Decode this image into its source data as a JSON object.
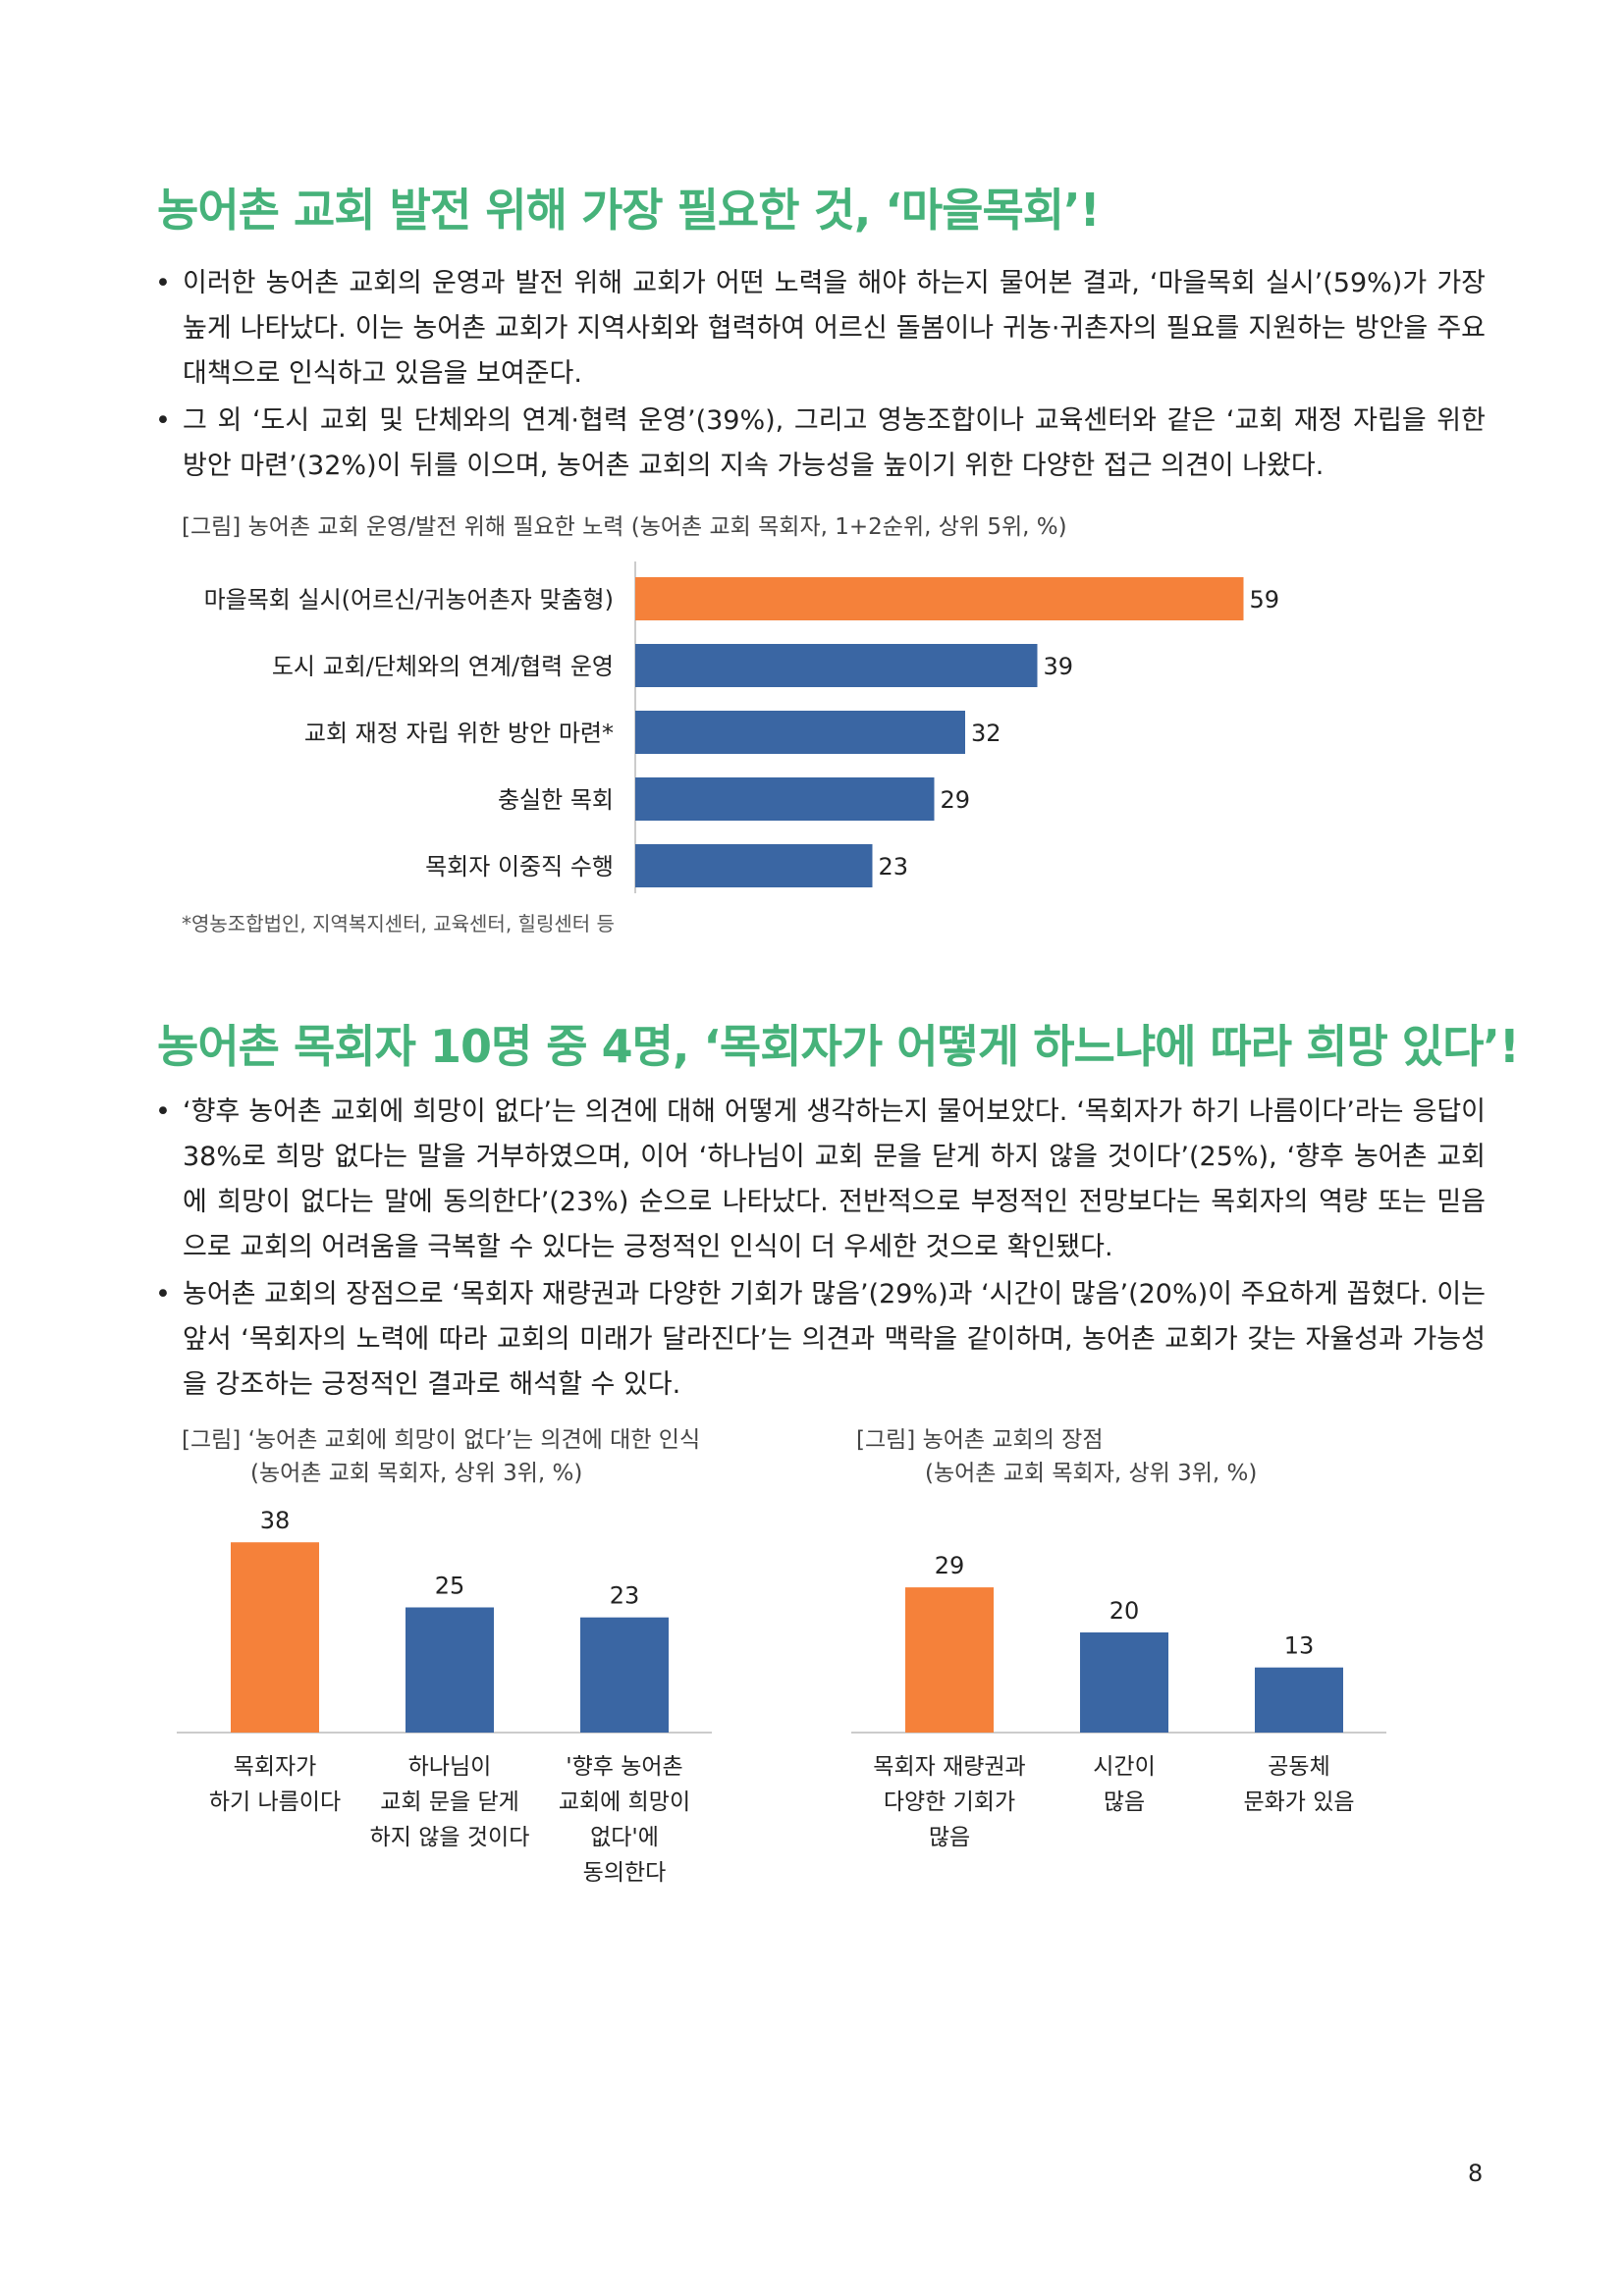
{
  "section1": {
    "heading": "농어촌 교회 발전 위해 가장 필요한 것, ‘마을목회’!",
    "bullets": [
      "이러한 농어촌 교회의 운영과 발전 위해 교회가 어떤 노력을 해야 하는지 물어본 결과, ‘마을목회 실시’(59%)가 가장 높게 나타났다. 이는 농어촌 교회가 지역사회와 협력하여 어르신 돌봄이나 귀농·귀촌자의 필요를 지원하는 방안을 주요 대책으로 인식하고 있음을 보여준다.",
      "그 외 ‘도시 교회 및 단체와의 연계·협력 운영’(39%), 그리고 영농조합이나 교육센터와 같은 ‘교회 재정 자립을 위한 방안 마련’(32%)이 뒤를 이으며, 농어촌 교회의 지속 가능성을 높이기 위한 다양한 접근 의견이 나왔다."
    ],
    "chart_caption": "[그림] 농어촌 교회 운영/발전 위해 필요한 노력 (농어촌 교회 목회자, 1+2순위, 상위 5위, %)",
    "footnote": "*영농조합법인, 지역복지센터, 교육센터, 힐링센터 등"
  },
  "section2": {
    "heading": "농어촌 목회자 10명 중 4명, ‘목회자가 어떻게 하느냐에 따라 희망 있다’!",
    "bullets": [
      "‘향후 농어촌 교회에 희망이 없다’는 의견에 대해 어떻게 생각하는지 물어보았다. ‘목회자가 하기 나름이다’라는 응답이 38%로 희망 없다는 말을 거부하였으며, 이어 ‘하나님이 교회 문을 닫게 하지 않을 것이다’(25%), ‘향후 농어촌 교회에 희망이 없다는 말에 동의한다’(23%) 순으로 나타났다. 전반적으로 부정적인 전망보다는 목회자의 역량 또는 믿음으로 교회의 어려움을 극복할 수 있다는 긍정적인 인식이 더 우세한 것으로 확인됐다.",
      "농어촌 교회의 장점으로 ‘목회자 재량권과 다양한 기회가 많음’(29%)과 ‘시간이 많음’(20%)이 주요하게 꼽혔다. 이는 앞서 ‘목회자의 노력에 따라 교회의 미래가 달라진다’는 의견과 맥락을 같이하며, 농어촌 교회가 갖는 자율성과 가능성을 강조하는 긍정적인 결과로 해석할 수 있다."
    ],
    "chart2_caption_line1": "[그림] ‘농어촌 교회에 희망이 없다’는 의견에 대한 인식",
    "chart2_caption_line2": "(농어촌 교회 목회자, 상위 3위, %)",
    "chart3_caption_line1": "[그림] 농어촌 교회의 장점",
    "chart3_caption_line2": "(농어촌 교회 목회자, 상위 3위, %)"
  },
  "page_number": "8",
  "colors": {
    "heading": "#46b27a",
    "highlight": "#f5813a",
    "primary": "#3a66a3",
    "axis": "#cccccc"
  },
  "chart_data": [
    {
      "type": "bar",
      "orientation": "horizontal",
      "categories": [
        "마을목회 실시(어르신/귀농어촌자 맞춤형)",
        "도시 교회/단체와의 연계/협력 운영",
        "교회 재정 자립 위한 방안 마련*",
        "충실한 목회",
        "목회자 이중직 수행"
      ],
      "values": [
        59,
        39,
        32,
        29,
        23
      ],
      "highlight_index": 0
    },
    {
      "type": "bar",
      "orientation": "vertical",
      "categories": [
        [
          "목회자가",
          "하기 나름이다"
        ],
        [
          "하나님이",
          "교회 문을 닫게",
          "하지 않을 것이다"
        ],
        [
          "'향후 농어촌",
          "교회에 희망이",
          "없다'에",
          "동의한다"
        ]
      ],
      "values": [
        38,
        25,
        23
      ],
      "highlight_index": 0
    },
    {
      "type": "bar",
      "orientation": "vertical",
      "categories": [
        [
          "목회자 재량권과",
          "다양한 기회가",
          "많음"
        ],
        [
          "시간이",
          "많음"
        ],
        [
          "공동체",
          "문화가 있음"
        ]
      ],
      "values": [
        29,
        20,
        13
      ],
      "highlight_index": 0
    }
  ]
}
